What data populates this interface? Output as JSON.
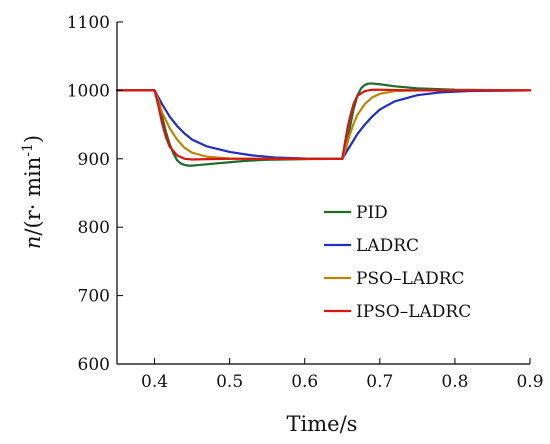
{
  "chart_data": {
    "type": "line",
    "xlabel": "Time/s",
    "ylabel": {
      "italic": "n",
      "prefix": "/(r· min",
      "sup": "-1",
      "suffix": ")"
    },
    "xlim": [
      0.35,
      0.9
    ],
    "ylim": [
      600,
      1100
    ],
    "xticks": [
      0.4,
      0.5,
      0.6,
      0.7,
      0.8,
      0.9
    ],
    "xtick_labels": [
      "0.4",
      "0.5",
      "0.6",
      "0.7",
      "0.8",
      "0.9"
    ],
    "yticks": [
      600,
      700,
      800,
      900,
      1000,
      1100
    ],
    "ytick_labels": [
      "600",
      "700",
      "800",
      "900",
      "1000",
      "1100"
    ],
    "grid": false,
    "legend_position": "right-center",
    "series": [
      {
        "name": "PID",
        "color": "#1f6b2a",
        "points": [
          [
            0.35,
            1000
          ],
          [
            0.4,
            1000
          ],
          [
            0.405,
            985
          ],
          [
            0.41,
            962
          ],
          [
            0.415,
            940
          ],
          [
            0.42,
            922
          ],
          [
            0.425,
            908
          ],
          [
            0.43,
            898
          ],
          [
            0.435,
            893
          ],
          [
            0.44,
            891
          ],
          [
            0.445,
            890
          ],
          [
            0.45,
            890
          ],
          [
            0.46,
            891
          ],
          [
            0.48,
            893
          ],
          [
            0.5,
            895
          ],
          [
            0.52,
            897
          ],
          [
            0.55,
            898.5
          ],
          [
            0.6,
            899.5
          ],
          [
            0.65,
            900
          ],
          [
            0.655,
            915
          ],
          [
            0.66,
            945
          ],
          [
            0.665,
            972
          ],
          [
            0.67,
            992
          ],
          [
            0.675,
            1003
          ],
          [
            0.68,
            1008
          ],
          [
            0.685,
            1010
          ],
          [
            0.69,
            1010
          ],
          [
            0.7,
            1009
          ],
          [
            0.72,
            1006
          ],
          [
            0.75,
            1003
          ],
          [
            0.8,
            1001
          ],
          [
            0.9,
            1000
          ]
        ]
      },
      {
        "name": "LADRC",
        "color": "#1f2fbf",
        "points": [
          [
            0.35,
            1000
          ],
          [
            0.4,
            1000
          ],
          [
            0.41,
            980
          ],
          [
            0.42,
            962
          ],
          [
            0.43,
            948
          ],
          [
            0.44,
            937
          ],
          [
            0.45,
            928
          ],
          [
            0.47,
            918
          ],
          [
            0.5,
            910
          ],
          [
            0.53,
            905
          ],
          [
            0.56,
            902
          ],
          [
            0.6,
            900.5
          ],
          [
            0.65,
            900
          ],
          [
            0.66,
            918
          ],
          [
            0.67,
            936
          ],
          [
            0.68,
            950
          ],
          [
            0.69,
            962
          ],
          [
            0.7,
            972
          ],
          [
            0.72,
            984
          ],
          [
            0.75,
            993
          ],
          [
            0.78,
            997
          ],
          [
            0.82,
            999
          ],
          [
            0.9,
            1000
          ]
        ]
      },
      {
        "name": "PSO–LADRC",
        "color": "#b8860b",
        "points": [
          [
            0.35,
            1000
          ],
          [
            0.4,
            1000
          ],
          [
            0.405,
            986
          ],
          [
            0.41,
            968
          ],
          [
            0.42,
            945
          ],
          [
            0.43,
            928
          ],
          [
            0.44,
            916
          ],
          [
            0.45,
            909
          ],
          [
            0.47,
            903
          ],
          [
            0.5,
            900.5
          ],
          [
            0.55,
            900
          ],
          [
            0.65,
            900
          ],
          [
            0.655,
            916
          ],
          [
            0.66,
            935
          ],
          [
            0.665,
            951
          ],
          [
            0.67,
            964
          ],
          [
            0.68,
            980
          ],
          [
            0.69,
            990
          ],
          [
            0.7,
            995
          ],
          [
            0.72,
            999
          ],
          [
            0.75,
            1000
          ],
          [
            0.9,
            1000
          ]
        ]
      },
      {
        "name": "IPSO–LADRC",
        "color": "#d9150f",
        "points": [
          [
            0.35,
            1000
          ],
          [
            0.4,
            1000
          ],
          [
            0.405,
            978
          ],
          [
            0.41,
            952
          ],
          [
            0.415,
            932
          ],
          [
            0.42,
            918
          ],
          [
            0.43,
            905
          ],
          [
            0.44,
            900
          ],
          [
            0.45,
            899
          ],
          [
            0.47,
            899.5
          ],
          [
            0.5,
            900
          ],
          [
            0.65,
            900
          ],
          [
            0.653,
            920
          ],
          [
            0.657,
            945
          ],
          [
            0.66,
            960
          ],
          [
            0.665,
            980
          ],
          [
            0.67,
            992
          ],
          [
            0.68,
            999
          ],
          [
            0.69,
            1001
          ],
          [
            0.7,
            1001
          ],
          [
            0.72,
            1000.5
          ],
          [
            0.75,
            1000
          ],
          [
            0.9,
            1000
          ]
        ]
      }
    ]
  }
}
